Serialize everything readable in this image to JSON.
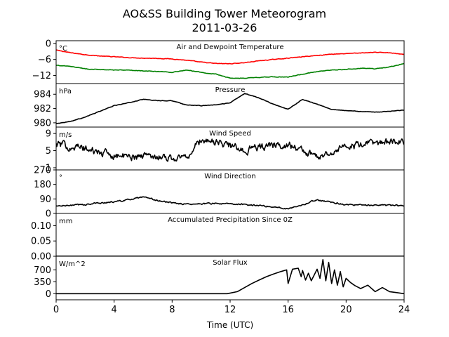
{
  "title": "AO&SS Building Tower Meteorogram",
  "subtitle": "2011-03-26",
  "xlabel": "Time (UTC)",
  "chart_data": {
    "type": "line",
    "x_range": [
      0,
      24
    ],
    "x_ticks": [
      0,
      4,
      8,
      12,
      16,
      20,
      24
    ],
    "x_tick_labels": [
      "0",
      "4",
      "8",
      "12",
      "16",
      "20",
      "24"
    ],
    "grid": false,
    "panels": [
      {
        "id": "temperature",
        "title": "Air and Dewpoint Temperature",
        "unit_label": "°C",
        "ylim": [
          -15,
          1
        ],
        "y_ticks": [
          0,
          -6,
          -12
        ],
        "y_tick_labels": [
          "0",
          "−6",
          "−12"
        ],
        "series": [
          {
            "color": "#ff0000",
            "x": [
              0,
              1,
              2,
              3,
              4,
              5,
              6,
              7,
              8,
              9,
              10,
              11,
              12,
              13,
              14,
              15,
              16,
              17,
              18,
              19,
              20,
              21,
              22,
              23,
              24
            ],
            "y": [
              -2.5,
              -3.5,
              -4.2,
              -4.7,
              -5.0,
              -5.3,
              -5.5,
              -5.6,
              -5.8,
              -6.3,
              -7.0,
              -7.5,
              -7.6,
              -7.2,
              -6.5,
              -6.0,
              -5.5,
              -5.0,
              -4.5,
              -4.0,
              -3.8,
              -3.6,
              -3.3,
              -3.5,
              -4.2
            ]
          },
          {
            "color": "#008000",
            "x": [
              0,
              1,
              2,
              3,
              4,
              5,
              6,
              7,
              8,
              9,
              10,
              11,
              12,
              13,
              14,
              15,
              16,
              17,
              18,
              19,
              20,
              21,
              22,
              23,
              24
            ],
            "y": [
              -8.2,
              -8.6,
              -9.5,
              -9.8,
              -10.0,
              -10.0,
              -10.3,
              -10.5,
              -10.8,
              -10.0,
              -10.8,
              -11.5,
              -13.0,
              -13.0,
              -12.7,
              -12.5,
              -12.6,
              -11.5,
              -10.5,
              -10.0,
              -9.7,
              -9.3,
              -9.5,
              -8.8,
              -7.5
            ]
          }
        ]
      },
      {
        "id": "pressure",
        "title": "Pressure",
        "unit_label": "hPa",
        "ylim": [
          979.4,
          985.5
        ],
        "y_ticks": [
          984,
          982,
          980
        ],
        "y_tick_labels": [
          "984",
          "982",
          "980"
        ],
        "series": [
          {
            "color": "#000000",
            "x": [
              0,
              1,
              2,
              3,
              4,
              5,
              6,
              7,
              8,
              9,
              10,
              11,
              12,
              13,
              14,
              15,
              16,
              17,
              18,
              19,
              20,
              21,
              22,
              23,
              24
            ],
            "y": [
              979.9,
              980.2,
              980.8,
              981.6,
              982.4,
              982.8,
              983.3,
              983.1,
              983.1,
              982.5,
              982.4,
              982.5,
              982.8,
              984.1,
              983.5,
              982.6,
              981.9,
              983.3,
              982.6,
              981.9,
              981.7,
              981.6,
              981.5,
              981.6,
              981.8
            ]
          }
        ]
      },
      {
        "id": "wind_speed",
        "title": "Wind Speed",
        "unit_label": "m/s",
        "ylim": [
          0.5,
          10.5
        ],
        "y_ticks": [
          9,
          5,
          1
        ],
        "y_tick_labels": [
          "9",
          "5",
          "1"
        ],
        "series": [
          {
            "color": "#000000",
            "x": [
              0,
              1,
              2,
              3,
              4,
              5,
              6,
              7,
              8,
              9,
              10,
              11,
              12,
              13,
              14,
              15,
              16,
              17,
              18,
              19,
              20,
              21,
              22,
              23,
              24
            ],
            "y": [
              6.5,
              6.0,
              5.5,
              4.5,
              4.0,
              3.5,
              3.8,
              3.8,
              3.2,
              3.5,
              7.5,
              7.0,
              6.2,
              5.0,
              5.8,
              6.2,
              6.5,
              5.0,
              3.5,
              4.8,
              6.0,
              6.2,
              6.8,
              7.0,
              6.8
            ]
          }
        ]
      },
      {
        "id": "wind_direction",
        "title": "Wind Direction",
        "unit_label": "°",
        "ylim": [
          0,
          270
        ],
        "y_ticks": [
          270,
          180,
          90,
          0
        ],
        "y_tick_labels": [
          "270",
          "180",
          "90",
          "0"
        ],
        "series": [
          {
            "color": "#000000",
            "x": [
              0,
              1,
              2,
              3,
              4,
              5,
              6,
              7,
              8,
              9,
              10,
              11,
              12,
              13,
              14,
              15,
              16,
              17,
              18,
              19,
              20,
              21,
              22,
              23,
              24
            ],
            "y": [
              45,
              50,
              55,
              65,
              72,
              85,
              100,
              80,
              65,
              58,
              60,
              62,
              58,
              55,
              50,
              40,
              30,
              55,
              85,
              70,
              55,
              50,
              52,
              50,
              48
            ]
          }
        ]
      },
      {
        "id": "precipitation",
        "title": "Accumulated Precipitation Since 0Z",
        "unit_label": "mm",
        "ylim": [
          0,
          0.14
        ],
        "y_ticks": [
          0.1,
          0.05,
          0.0
        ],
        "y_tick_labels": [
          "0.10",
          "0.05",
          "0.00"
        ],
        "series": [
          {
            "color": "#000000",
            "x": [
              0,
              24
            ],
            "y": [
              0,
              0
            ]
          }
        ]
      },
      {
        "id": "solar_flux",
        "title": "Solar Flux",
        "unit_label": "W/m^2",
        "ylim": [
          -180,
          1100
        ],
        "y_ticks": [
          700,
          350,
          0
        ],
        "y_tick_labels": [
          "700",
          "350",
          "0"
        ],
        "series": [
          {
            "color": "#000000",
            "x": [
              0,
              11.8,
              12.5,
              13.0,
              13.5,
              14.0,
              14.5,
              15.0,
              15.5,
              15.9,
              16.0,
              16.3,
              16.7,
              16.9,
              17.0,
              17.2,
              17.4,
              17.6,
              17.8,
              18.0,
              18.2,
              18.4,
              18.6,
              18.8,
              19.0,
              19.2,
              19.4,
              19.6,
              19.8,
              20.0,
              20.3,
              20.6,
              21.0,
              21.5,
              22.0,
              22.5,
              23.0,
              23.5,
              24.0
            ],
            "y": [
              0,
              0,
              60,
              180,
              300,
              400,
              500,
              580,
              650,
              700,
              300,
              720,
              750,
              500,
              680,
              400,
              600,
              380,
              550,
              720,
              450,
              1000,
              380,
              920,
              300,
              700,
              250,
              650,
              200,
              450,
              330,
              240,
              150,
              250,
              60,
              180,
              60,
              30,
              0
            ]
          }
        ]
      }
    ]
  }
}
